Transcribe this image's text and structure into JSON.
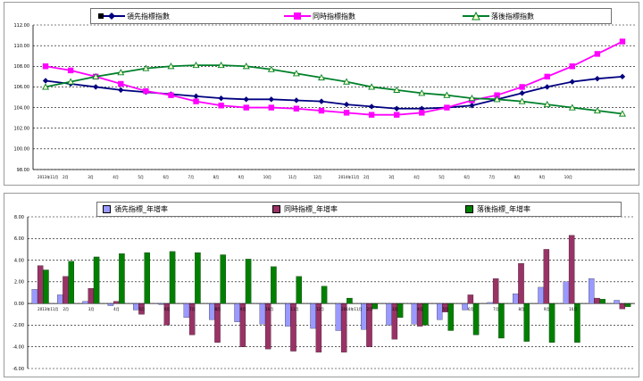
{
  "charts": {
    "top": {
      "legend": [
        {
          "label": "領先指標指數",
          "color": "#000080",
          "marker": "diamond"
        },
        {
          "label": "同時指標指數",
          "color": "#ff00ff",
          "marker": "square"
        },
        {
          "label": "落後指標指數",
          "color": "#00802a",
          "marker": "triangle"
        }
      ]
    },
    "bottom": {
      "legend": [
        {
          "label": "領先指標_年增率",
          "color": "#9999ff"
        },
        {
          "label": "同時指標_年增率",
          "color": "#993366"
        },
        {
          "label": "落後指標_年增率",
          "color": "#008000"
        }
      ]
    }
  },
  "chart_data": [
    {
      "type": "line",
      "categories": [
        "2013年11月",
        "12月",
        "1月",
        "2月",
        "3月",
        "4月",
        "5月",
        "6月",
        "7月",
        "8月",
        "9月",
        "10月",
        "2014年11月",
        "12月",
        "1月",
        "2月",
        "3月",
        "4月",
        "5月",
        "6月",
        "7月",
        "8月",
        "9月",
        "10月"
      ],
      "x_tick_labels": [
        "2013年11月",
        "2月",
        "3月",
        "4月",
        "5月",
        "6月",
        "7月",
        "8月",
        "9月",
        "10月",
        "11月",
        "12月",
        "2014年11月",
        "2月",
        "3月",
        "4月",
        "5月",
        "6月",
        "7月",
        "8月",
        "9月",
        "10月"
      ],
      "ylim": [
        98,
        112
      ],
      "y_ticks": [
        "98.00",
        "100.00",
        "102.00",
        "104.00",
        "106.00",
        "108.00",
        "110.00",
        "112.00"
      ],
      "grid": true,
      "legend_position": "top",
      "series": [
        {
          "name": "領先指標指數",
          "color": "#000080",
          "marker": "diamond",
          "values": [
            106.6,
            106.3,
            106.0,
            105.7,
            105.5,
            105.3,
            105.1,
            104.9,
            104.8,
            104.8,
            104.7,
            104.6,
            104.3,
            104.1,
            103.9,
            103.9,
            104.0,
            104.2,
            104.8,
            105.4,
            106.0,
            106.5,
            106.8,
            107.0
          ]
        },
        {
          "name": "同時指標指數",
          "color": "#ff00ff",
          "marker": "square",
          "values": [
            108.0,
            107.6,
            107.0,
            106.3,
            105.6,
            105.2,
            104.6,
            104.2,
            104.0,
            104.0,
            103.9,
            103.7,
            103.5,
            103.3,
            103.3,
            103.5,
            104.0,
            104.7,
            105.2,
            106.0,
            107.0,
            108.0,
            109.2,
            110.4
          ]
        },
        {
          "name": "落後指標指數",
          "color": "#00802a",
          "marker": "triangle",
          "values": [
            106.0,
            106.5,
            107.0,
            107.4,
            107.8,
            108.0,
            108.1,
            108.1,
            108.0,
            107.7,
            107.3,
            106.9,
            106.5,
            106.0,
            105.7,
            105.4,
            105.2,
            104.9,
            104.8,
            104.6,
            104.3,
            104.0,
            103.7,
            103.4
          ]
        }
      ]
    },
    {
      "type": "bar",
      "categories": [
        "2013年11月",
        "12月",
        "1月",
        "2月",
        "3月",
        "4月",
        "5月",
        "6月",
        "7月",
        "8月",
        "9月",
        "10月",
        "2014年11月",
        "12月",
        "1月",
        "2月",
        "3月",
        "4月",
        "5月",
        "6月",
        "7月",
        "8月",
        "9月",
        "10月"
      ],
      "x_tick_labels": [
        "2013年11月",
        "2月",
        "3月",
        "4月",
        "5月",
        "6月",
        "7月",
        "8月",
        "9月",
        "10月",
        "11月",
        "12月",
        "2014年11月",
        "2月",
        "3月",
        "4月",
        "5月",
        "6月",
        "7月",
        "8月",
        "9月",
        "10月"
      ],
      "ylim": [
        -6,
        8
      ],
      "y_ticks": [
        "-6.00",
        "-4.00",
        "-2.00",
        "0.00",
        "2.00",
        "4.00",
        "6.00",
        "8.00"
      ],
      "grid": true,
      "legend_position": "top",
      "series": [
        {
          "name": "領先指標_年增率",
          "color": "#9999ff",
          "values": [
            1.3,
            0.8,
            0.2,
            -0.2,
            -0.6,
            -0.1,
            -1.3,
            -1.5,
            -1.7,
            -1.9,
            -2.1,
            -2.3,
            -2.5,
            -2.4,
            -2.0,
            -1.9,
            -1.5,
            -0.6,
            0.1,
            0.9,
            1.5,
            2.0,
            2.3,
            0.3
          ]
        },
        {
          "name": "同時指標_年增率",
          "color": "#993366",
          "values": [
            3.5,
            2.5,
            1.4,
            0.2,
            -1.0,
            -2.0,
            -2.9,
            -3.6,
            -4.0,
            -4.2,
            -4.4,
            -4.5,
            -4.5,
            -4.0,
            -3.3,
            -2.1,
            -0.8,
            0.8,
            2.3,
            3.7,
            5.0,
            6.3,
            0.5,
            -0.5
          ]
        },
        {
          "name": "落後指標_年增率",
          "color": "#008000",
          "values": [
            3.1,
            3.9,
            4.3,
            4.6,
            4.7,
            4.8,
            4.7,
            4.5,
            4.1,
            3.4,
            2.5,
            1.6,
            0.5,
            -0.5,
            -1.3,
            -2.0,
            -2.5,
            -2.9,
            -3.2,
            -3.5,
            -3.6,
            -3.6,
            0.4,
            -0.3
          ]
        }
      ]
    }
  ]
}
